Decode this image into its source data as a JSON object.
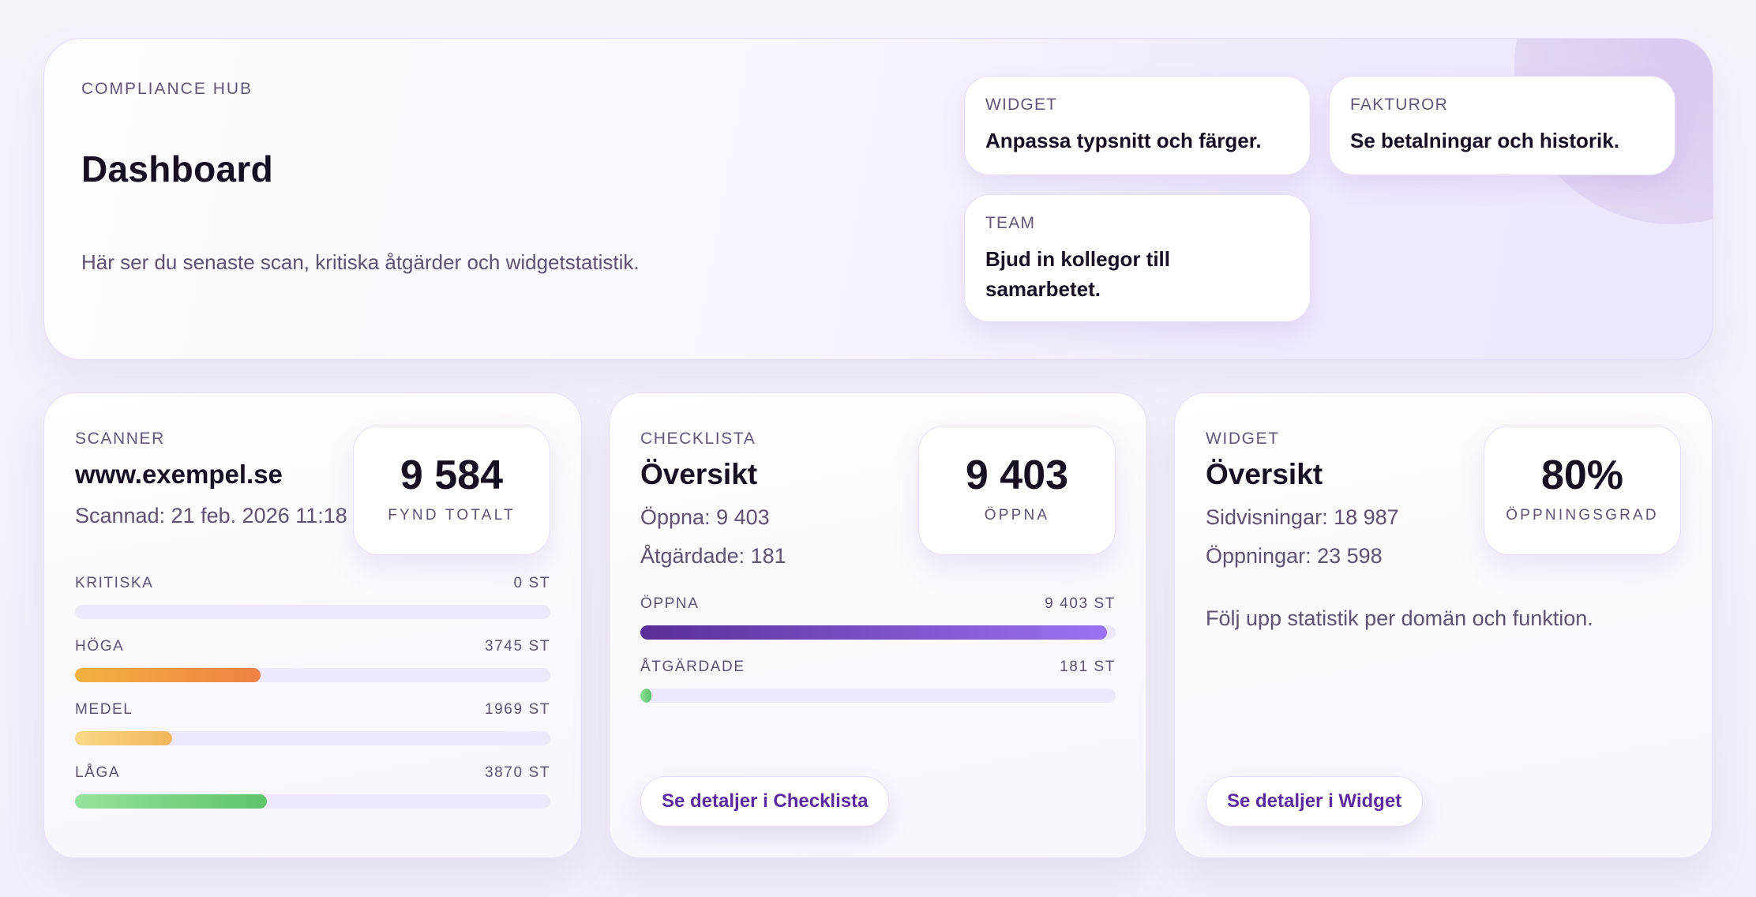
{
  "hero": {
    "eyebrow": "COMPLIANCE HUB",
    "title": "Dashboard",
    "subtitle": "Här ser du senaste scan, kritiska åtgärder och widgetstatistik.",
    "shortcuts": [
      {
        "label": "WIDGET",
        "text": "Anpassa typsnitt och färger."
      },
      {
        "label": "FAKTUROR",
        "text": "Se betalningar och historik."
      },
      {
        "label": "TEAM",
        "text": "Bjud in kollegor till samarbetet."
      }
    ]
  },
  "scanner": {
    "eyebrow": "SCANNER",
    "domain": "www.exempel.se",
    "scanned": "Scannad: 21 feb. 2026 11:18",
    "stat": {
      "value": "9 584",
      "label": "FYND TOTALT"
    },
    "severities": [
      {
        "label": "KRITISKA",
        "count": "0 ST",
        "percent": 0,
        "gradient": [
          "#e45b5b",
          "#e45b5b"
        ]
      },
      {
        "label": "HÖGA",
        "count": "3745 ST",
        "percent": 39.1,
        "gradient": [
          "#f3b23f",
          "#ef8145"
        ]
      },
      {
        "label": "MEDEL",
        "count": "1969 ST",
        "percent": 20.5,
        "gradient": [
          "#f8d985",
          "#f2b55d"
        ]
      },
      {
        "label": "LÅGA",
        "count": "3870 ST",
        "percent": 40.4,
        "gradient": [
          "#95e39d",
          "#5ec46a"
        ]
      }
    ]
  },
  "checklist": {
    "eyebrow": "CHECKLISTA",
    "title": "Översikt",
    "open_line": "Öppna: 9 403",
    "fixed_line": "Åtgärdade: 181",
    "stat": {
      "value": "9 403",
      "label": "ÖPPNA"
    },
    "bars": [
      {
        "label": "ÖPPNA",
        "count": "9 403 ST",
        "percent": 98.1,
        "gradient": [
          "#5a2d98",
          "#9b73f2"
        ]
      },
      {
        "label": "ÅTGÄRDADE",
        "count": "181 ST",
        "percent": 1.9,
        "gradient": [
          "#8ddf95",
          "#5ec46a"
        ]
      }
    ],
    "button": "Se detaljer i Checklista"
  },
  "widget": {
    "eyebrow": "WIDGET",
    "title": "Översikt",
    "pageviews_line": "Sidvisningar: 18 987",
    "opens_line": "Öppningar: 23 598",
    "stat": {
      "value": "80%",
      "label": "ÖPPNINGSGRAD"
    },
    "note": "Följ upp statistik per domän och funktion.",
    "button": "Se detaljer i Widget"
  },
  "colors": {
    "accent": "#5b2aa0",
    "track": "#efe8fc",
    "text_dark": "#160f22",
    "text_muted": "#5e5270"
  }
}
